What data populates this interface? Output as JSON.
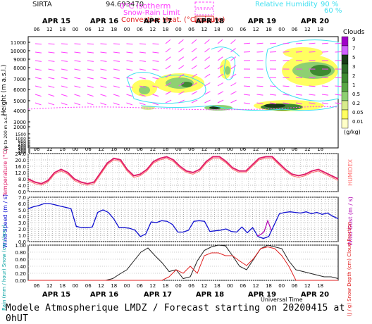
{
  "header": {
    "station": "SIRTA",
    "station_code": "94.693470",
    "legend_isotherm": "0°C isotherm",
    "legend_snow_rain": "Snow-Rain Limit",
    "legend_convective": "Convective Heat. (°C/minute)",
    "legend_rh": "Relative Humidity",
    "rh_90": "90 %",
    "rh_60": "60 %"
  },
  "footer": {
    "text": "Modele Atmospherique LMDZ / Forecast starting on 20200415 at 0hUT"
  },
  "axes": {
    "days": [
      "APR 15",
      "APR 16",
      "APR 17",
      "APR 18",
      "APR 19",
      "APR 20"
    ],
    "hours": [
      "06",
      "12",
      "18",
      "00",
      "06",
      "12",
      "18",
      "00",
      "06",
      "12",
      "18",
      "00",
      "06",
      "12",
      "18",
      "00",
      "06",
      "12",
      "18",
      "00",
      "06",
      "12",
      "18"
    ],
    "universal_time": "Universal Time"
  },
  "colors": {
    "temperature": "#e0206a",
    "humidex": "#ff7070",
    "wind": "#1010d0",
    "gust": "#b000b0",
    "rain": "#202020",
    "cape": "#e02020",
    "rh": "#40e0f0",
    "arrows": "#ff40ff"
  },
  "chart_data": [
    {
      "type": "heatmap",
      "title": "Clouds",
      "ylabel": "Height (m a.s.l.)",
      "ylabel_low": "Up to 200 m a.s.l.",
      "unit": "(g/kg)",
      "y_ticks": [
        "11000",
        "10000",
        "9000",
        "8000",
        "7000",
        "6000",
        "5000",
        "4000",
        "3000",
        "2000",
        "1500",
        "1000",
        "800",
        "700",
        "600",
        "500",
        "400",
        "300",
        "200",
        "100"
      ],
      "colorbar_labels": [
        "9",
        "7",
        "5",
        "3",
        "2",
        "1",
        "0.5",
        "0.2",
        "0.05",
        "0.01"
      ],
      "colorbar_colors": [
        "#a000c8",
        "#d060ff",
        "#1a3a18",
        "#2e6a2a",
        "#3e8a32",
        "#59a645",
        "#8ed072",
        "#d8ec8c",
        "#ffff60",
        "#ffffc8"
      ]
    },
    {
      "type": "line",
      "ylabel": "Temperature (°C)",
      "ylabel_right": "HUMIDEX",
      "ylim": [
        0.0,
        24.0
      ],
      "y_ticks": [
        "24.0",
        "20.0",
        "16.0",
        "12.0",
        "8.0",
        "4.0",
        "0.0"
      ],
      "series": [
        {
          "name": "Temperature",
          "values": [
            8,
            6,
            5,
            7,
            12,
            14,
            12,
            8,
            6,
            5,
            6,
            12,
            18,
            21,
            20,
            14,
            10,
            11,
            14,
            19,
            21,
            22,
            20,
            16,
            13,
            12,
            14,
            19,
            22,
            22,
            19,
            15,
            13,
            13,
            17,
            21,
            22,
            22,
            18,
            14,
            11,
            10,
            11,
            13,
            14,
            12,
            10,
            8
          ]
        },
        {
          "name": "HUMIDEX",
          "values": [
            7,
            5,
            4,
            6,
            11,
            13,
            11,
            7,
            5,
            4,
            5,
            11,
            17,
            20,
            19,
            13,
            9,
            10,
            13,
            18,
            20,
            21,
            19,
            15,
            12,
            11,
            13,
            18,
            21,
            21,
            18,
            14,
            12,
            12,
            16,
            20,
            21,
            21,
            17,
            13,
            10,
            9,
            10,
            12,
            13,
            11,
            9,
            7
          ]
        }
      ]
    },
    {
      "type": "line",
      "ylabel": "Wind Speed (m / s)",
      "ylabel_right": "Wind Gust (m / s)",
      "ylim": [
        0.0,
        7.0
      ],
      "y_ticks": [
        "7.0",
        "6.0",
        "5.0",
        "4.0",
        "3.0",
        "2.0",
        "1.0",
        "0.0"
      ],
      "series": [
        {
          "name": "Wind Speed",
          "values": [
            5.2,
            5.5,
            5.7,
            6.0,
            6.0,
            5.8,
            5.6,
            5.4,
            5.2,
            2.4,
            2.2,
            2.2,
            2.3,
            4.6,
            5.0,
            4.6,
            3.6,
            2.2,
            2.2,
            2.1,
            1.8,
            0.8,
            1.2,
            3.1,
            3.0,
            3.3,
            3.2,
            2.7,
            1.5,
            1.5,
            1.8,
            3.2,
            3.3,
            3.2,
            1.6,
            1.7,
            1.8,
            2.0,
            1.6,
            1.5,
            2.3,
            1.4,
            2.2,
            0.8,
            0.5,
            0.8,
            2.6,
            4.4,
            4.6,
            4.7,
            4.6,
            4.5,
            4.7,
            4.4,
            4.6,
            4.3,
            4.5,
            4.0,
            3.6
          ]
        },
        {
          "name": "Wind Gust",
          "values": [
            0.9,
            1.1,
            1.6,
            3.3,
            1.8
          ]
        }
      ]
    },
    {
      "type": "line",
      "ylabel": "Rain (mm / hour) Snow (cm / hour)",
      "ylabel_right": "CAPE (J / g) Snow Depth (cm) Cloud Fraction",
      "ylim": [
        0.0,
        1.0
      ],
      "y_ticks": [
        "1.00",
        "0.80",
        "0.60",
        "0.40",
        "0.20",
        "0.00"
      ],
      "series": [
        {
          "name": "Cloud Fraction",
          "values": [
            0,
            0,
            0,
            0,
            0,
            0,
            0,
            0,
            0,
            0,
            0,
            0,
            0.05,
            0.18,
            0.3,
            0.55,
            0.8,
            0.92,
            0.7,
            0.5,
            0.25,
            0.3,
            0.05,
            0.1,
            0.55,
            0.85,
            0.95,
            1,
            0.98,
            0.7,
            0.4,
            0.3,
            0.6,
            0.9,
            1,
            0.95,
            0.9,
            0.55,
            0.3,
            0.25,
            0.2,
            0.15,
            0.1,
            0.1,
            0.05
          ]
        },
        {
          "name": "CAPE",
          "values": [
            0,
            0,
            0,
            0,
            0,
            0,
            0,
            0,
            0,
            0,
            0,
            0,
            0,
            0,
            0,
            0,
            0,
            0,
            0,
            0,
            0.1,
            0.3,
            0.2,
            0.4,
            0.2,
            0.7,
            0.78,
            0.78,
            0.7,
            0.7,
            0.55,
            0.42,
            0.62,
            0.9,
            0.95,
            0.9,
            0.7,
            0.4,
            0,
            0,
            0,
            0,
            0,
            0,
            0
          ]
        }
      ]
    }
  ]
}
